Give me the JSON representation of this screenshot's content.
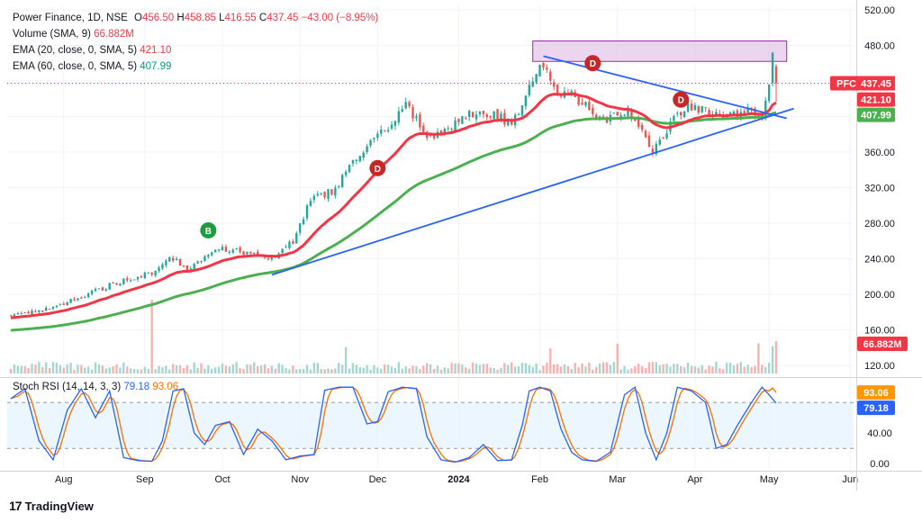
{
  "colors": {
    "up": "#26a69a",
    "down": "#ef5350",
    "ema20": "#f23645",
    "ema60": "#4caf50",
    "trendline": "#2962ff",
    "zone": "#e1bee7",
    "stoch_k": "#2962ff",
    "stoch_d": "#ff6d00",
    "stoch_band": "#e3f2fd",
    "buy_marker": "#1b9e3e",
    "down_marker": "#c62828"
  },
  "legend": {
    "symbol": "Power Finance, 1D, NSE",
    "ohlc": {
      "o_label": "O",
      "o": "456.50",
      "h_label": "H",
      "h": "458.85",
      "l_label": "L",
      "l": "416.55",
      "c_label": "C",
      "c": "437.45",
      "change": "−43.00 (−8.95%)"
    },
    "volume": {
      "label": "Volume (SMA, 9)",
      "value": "66.882M"
    },
    "ema20": {
      "label": "EMA (20, close, 0, SMA, 5)",
      "value": "421.10"
    },
    "ema60": {
      "label": "EMA (60, close, 0, SMA, 5)",
      "value": "407.99"
    }
  },
  "rsi_legend": {
    "label": "Stoch RSI (14, 14, 3, 3)",
    "k": "79.18",
    "d": "93.06"
  },
  "brand": {
    "name": "TradingView",
    "logo": "17"
  },
  "chart_data": [
    {
      "type": "candlestick",
      "title": "Power Finance, 1D, NSE",
      "price_axis_ticks": [
        "520.00",
        "480.00",
        "440.00",
        "400.00",
        "360.00",
        "320.00",
        "280.00",
        "240.00",
        "200.00",
        "160.00",
        "120.00"
      ],
      "ylim": [
        108,
        525
      ],
      "x_tick_labels": [
        "Aug",
        "Sep",
        "Oct",
        "Nov",
        "Dec",
        "2024",
        "Feb",
        "Mar",
        "Apr",
        "May",
        "Jun"
      ],
      "x_ticks_bar_index": [
        15,
        38,
        60,
        82,
        104,
        127,
        150,
        172,
        194,
        215,
        238
      ],
      "anchors": {
        "bar_index": [
          0,
          10,
          20,
          30,
          38,
          40,
          45,
          50,
          58,
          63,
          70,
          75,
          80,
          85,
          88,
          92,
          95,
          100,
          104,
          108,
          112,
          116,
          118,
          122,
          127,
          132,
          138,
          142,
          147,
          150,
          152,
          155,
          158,
          160,
          164,
          168,
          172,
          175,
          178,
          182,
          185,
          188,
          192,
          196,
          200,
          204,
          207,
          210,
          213,
          215,
          216,
          217
        ],
        "close": [
          176,
          183,
          198,
          213,
          222,
          224,
          244,
          226,
          252,
          250,
          244,
          240,
          260,
          306,
          310,
          318,
          340,
          360,
          384,
          392,
          416,
          390,
          375,
          385,
          395,
          405,
          400,
          390,
          432,
          452,
          450,
          424,
          428,
          420,
          410,
          394,
          402,
          405,
          392,
          362,
          380,
          398,
          414,
          407,
          404,
          400,
          404,
          406,
          405,
          440,
          475,
          437.45
        ]
      },
      "series": [
        {
          "name": "EMA (20, close, 0, SMA, 5)",
          "last": 421.1
        },
        {
          "name": "EMA (60, close, 0, SMA, 5)",
          "last": 407.99
        }
      ],
      "last_close": 437.45,
      "price_labels": [
        {
          "text": "PFC",
          "value": "437.45"
        },
        {
          "text": "",
          "value": "421.10"
        },
        {
          "text": "",
          "value": "407.99"
        },
        {
          "text": "",
          "value": "66.882M"
        }
      ],
      "resistance_zone": [
        462,
        485
      ],
      "resistance_zone_bars": [
        148,
        220
      ],
      "trendlines": [
        {
          "from": [
            74,
            222
          ],
          "to": [
            222,
            409
          ]
        },
        {
          "from": [
            151,
            468
          ],
          "to": [
            220,
            398
          ]
        }
      ],
      "markers": [
        {
          "label": "B",
          "bar_index": 56,
          "price": 272
        },
        {
          "label": "D",
          "bar_index": 104,
          "price": 342
        },
        {
          "label": "D",
          "bar_index": 165,
          "price": 460
        },
        {
          "label": "D",
          "bar_index": 190,
          "price": 419
        }
      ],
      "volume_spikes_bar_index": [
        40,
        95,
        153,
        172,
        212,
        216
      ]
    },
    {
      "type": "line",
      "title": "Stoch RSI (14, 14, 3, 3)",
      "ylim": [
        -8,
        112
      ],
      "y_tick_labels": [
        "40.00",
        "0.00"
      ],
      "y_ticks": [
        40,
        0
      ],
      "band": [
        20,
        80
      ],
      "k_anchors": [
        [
          0,
          85
        ],
        [
          4,
          98
        ],
        [
          8,
          30
        ],
        [
          12,
          5
        ],
        [
          16,
          70
        ],
        [
          20,
          98
        ],
        [
          24,
          60
        ],
        [
          28,
          95
        ],
        [
          32,
          8
        ],
        [
          36,
          4
        ],
        [
          40,
          3
        ],
        [
          43,
          30
        ],
        [
          46,
          95
        ],
        [
          49,
          98
        ],
        [
          52,
          40
        ],
        [
          55,
          25
        ],
        [
          58,
          50
        ],
        [
          62,
          55
        ],
        [
          66,
          12
        ],
        [
          70,
          45
        ],
        [
          74,
          30
        ],
        [
          78,
          5
        ],
        [
          82,
          10
        ],
        [
          86,
          12
        ],
        [
          89,
          96
        ],
        [
          93,
          100
        ],
        [
          97,
          100
        ],
        [
          101,
          52
        ],
        [
          104,
          55
        ],
        [
          107,
          94
        ],
        [
          111,
          100
        ],
        [
          115,
          98
        ],
        [
          118,
          35
        ],
        [
          122,
          5
        ],
        [
          126,
          2
        ],
        [
          130,
          8
        ],
        [
          134,
          25
        ],
        [
          138,
          4
        ],
        [
          142,
          5
        ],
        [
          145,
          50
        ],
        [
          147,
          95
        ],
        [
          150,
          100
        ],
        [
          153,
          95
        ],
        [
          156,
          45
        ],
        [
          159,
          15
        ],
        [
          162,
          5
        ],
        [
          166,
          3
        ],
        [
          170,
          15
        ],
        [
          174,
          90
        ],
        [
          177,
          100
        ],
        [
          180,
          40
        ],
        [
          183,
          5
        ],
        [
          186,
          40
        ],
        [
          189,
          100
        ],
        [
          193,
          95
        ],
        [
          197,
          80
        ],
        [
          200,
          20
        ],
        [
          203,
          25
        ],
        [
          206,
          50
        ],
        [
          210,
          80
        ],
        [
          213,
          100
        ],
        [
          215,
          90
        ],
        [
          217,
          79.18
        ]
      ],
      "last_k": 79.18,
      "last_d": 93.06
    }
  ]
}
